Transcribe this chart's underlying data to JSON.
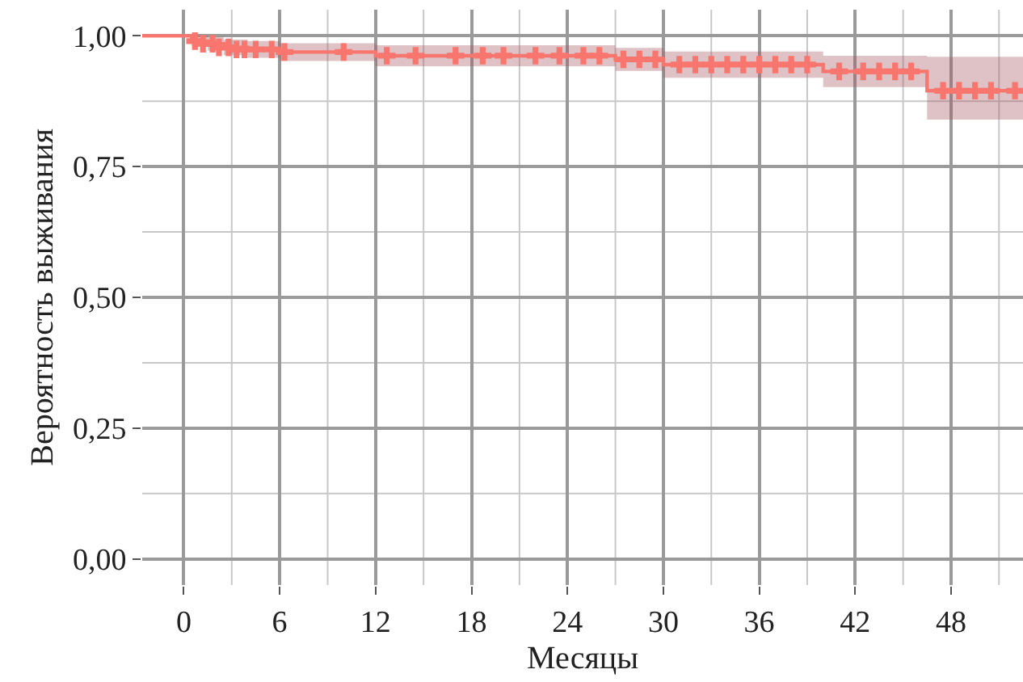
{
  "chart_data": {
    "type": "step",
    "xlabel": "Месяцы",
    "ylabel": "Вероятность выживания",
    "xlim": [
      -2.6,
      52.5
    ],
    "ylim": [
      -0.05,
      1.05
    ],
    "xticks": [
      0,
      6,
      12,
      18,
      24,
      30,
      36,
      42,
      48
    ],
    "yticks": [
      {
        "value": 0,
        "label": "0,00"
      },
      {
        "value": 0.25,
        "label": "0,25"
      },
      {
        "value": 0.5,
        "label": "0,50"
      },
      {
        "value": 0.75,
        "label": "0,75"
      },
      {
        "value": 1,
        "label": "1,00"
      }
    ],
    "grid": true,
    "series": [
      {
        "color": "#f8766d",
        "x": [
          -2.6,
          0,
          0.5,
          1.5,
          2.5,
          4,
          6,
          12,
          27,
          30,
          40,
          46.5,
          52.5
        ],
        "values": [
          1.0,
          1.0,
          0.99,
          0.985,
          0.978,
          0.974,
          0.969,
          0.962,
          0.955,
          0.945,
          0.932,
          0.895,
          0.895
        ],
        "lower": [
          1.0,
          1.0,
          0.98,
          0.972,
          0.963,
          0.958,
          0.952,
          0.942,
          0.933,
          0.92,
          0.902,
          0.84,
          0.84
        ],
        "upper": [
          1.0,
          1.0,
          1.0,
          0.998,
          0.993,
          0.99,
          0.986,
          0.982,
          0.977,
          0.97,
          0.962,
          0.96,
          0.96
        ]
      },
      {
        "type": "scatter",
        "color": "#f8766d",
        "marker": "cross",
        "x": [
          0.7,
          1.2,
          1.8,
          2.2,
          2.8,
          3.3,
          3.8,
          4.5,
          5.5,
          6.3,
          10,
          12.7,
          14.5,
          17,
          18.7,
          20,
          22,
          23.5,
          25,
          26,
          27.5,
          28.5,
          29.5,
          31,
          32,
          33,
          34,
          35,
          36,
          37,
          38,
          39,
          41,
          42.5,
          43.5,
          44.5,
          45.5,
          47.5,
          48.5,
          49.5,
          50.5,
          52
        ],
        "values": [
          0.99,
          0.985,
          0.985,
          0.978,
          0.978,
          0.974,
          0.974,
          0.974,
          0.974,
          0.969,
          0.969,
          0.962,
          0.962,
          0.962,
          0.962,
          0.962,
          0.962,
          0.962,
          0.962,
          0.962,
          0.955,
          0.955,
          0.955,
          0.945,
          0.945,
          0.945,
          0.945,
          0.945,
          0.945,
          0.945,
          0.945,
          0.945,
          0.932,
          0.932,
          0.932,
          0.932,
          0.932,
          0.895,
          0.895,
          0.895,
          0.895,
          0.895
        ]
      }
    ]
  }
}
